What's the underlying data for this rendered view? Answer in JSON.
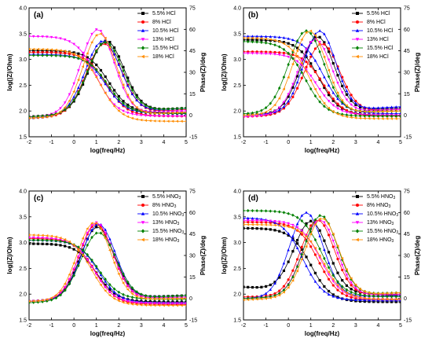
{
  "chart_data": [
    {
      "type": "scatter",
      "panel_label": "(a)",
      "xlabel": "log(freq/Hz)",
      "ylabel": "log(|Z|/Ohm)",
      "y2label": "Phase(Z)/deg",
      "xlim": [
        -2,
        5
      ],
      "ylim": [
        1.5,
        4.0
      ],
      "y2lim": [
        -15,
        75
      ],
      "xticks": [
        "-2",
        "-1",
        "0",
        "1",
        "2",
        "3",
        "4",
        "5"
      ],
      "yticks": [
        "1.5",
        "2.0",
        "2.5",
        "3.0",
        "3.5",
        "4.0"
      ],
      "y2ticks": [
        "-15",
        "0",
        "15",
        "30",
        "45",
        "60",
        "75"
      ],
      "legend": [
        "5.5% HCl",
        "8%  HCl",
        "10.5% HCl",
        "13% HCl",
        "15.5% HCl",
        "18% HCl"
      ],
      "legend_position": "top-right",
      "series": [
        {
          "name": "5.5% HCl",
          "color": "#000000",
          "marker": "square",
          "r0": 3.17,
          "rinf": 1.96,
          "fc": 1.55,
          "pk": 52,
          "fpk": 1.45,
          "w": 1.1,
          "ph0": -1,
          "phe": 5
        },
        {
          "name": "8%  HCl",
          "color": "#ff0000",
          "marker": "circle",
          "r0": 3.14,
          "rinf": 1.9,
          "fc": 1.45,
          "pk": 50,
          "fpk": 1.35,
          "w": 1.1,
          "ph0": -2,
          "phe": 4
        },
        {
          "name": "10.5% HCl",
          "color": "#0000ff",
          "marker": "triangle-up",
          "r0": 3.1,
          "rinf": 1.95,
          "fc": 1.4,
          "pk": 52,
          "fpk": 1.3,
          "w": 1.1,
          "ph0": -2,
          "phe": 5
        },
        {
          "name": "13% HCl",
          "color": "#ff00ff",
          "marker": "triangle-down",
          "r0": 3.45,
          "rinf": 1.9,
          "fc": 1.0,
          "pk": 60,
          "fpk": 1.05,
          "w": 1.05,
          "ph0": -1,
          "phe": 3
        },
        {
          "name": "15.5% HCl",
          "color": "#008000",
          "marker": "diamond",
          "r0": 3.08,
          "rinf": 1.95,
          "fc": 1.5,
          "pk": 51,
          "fpk": 1.4,
          "w": 1.1,
          "ph0": -1,
          "phe": 5
        },
        {
          "name": "18% HCl",
          "color": "#ff8c00",
          "marker": "triangle-left",
          "r0": 3.2,
          "rinf": 1.8,
          "fc": 1.2,
          "pk": 57,
          "fpk": 1.15,
          "w": 1.05,
          "ph0": -2,
          "phe": 2
        }
      ]
    },
    {
      "type": "scatter",
      "panel_label": "(b)",
      "xlabel": "log(freq/Hz)",
      "ylabel": "log(|Z|/Ohm)",
      "y2label": "Phase(Z)/deg",
      "xlim": [
        -2,
        5
      ],
      "ylim": [
        1.5,
        4.0
      ],
      "y2lim": [
        -15,
        75
      ],
      "xticks": [
        "-2",
        "-1",
        "0",
        "1",
        "2",
        "3",
        "4",
        "5"
      ],
      "yticks": [
        "1.5",
        "2.0",
        "2.5",
        "3.0",
        "3.5",
        "4.0"
      ],
      "y2ticks": [
        "-15",
        "0",
        "15",
        "30",
        "45",
        "60",
        "75"
      ],
      "legend": [
        "5.5% HCl",
        "8%  HCl",
        "10.5%  HCl",
        "13%  HCl",
        "15.5% HCl",
        "18%  HCl"
      ],
      "legend_position": "top-right",
      "series": [
        {
          "name": "5.5% HCl",
          "color": "#000000",
          "marker": "square",
          "r0": 3.38,
          "rinf": 1.92,
          "fc": 1.35,
          "pk": 55,
          "fpk": 1.3,
          "w": 1.05,
          "ph0": 0,
          "phe": 5
        },
        {
          "name": "8%  HCl",
          "color": "#ff0000",
          "marker": "circle",
          "r0": 3.15,
          "rinf": 1.9,
          "fc": 1.55,
          "pk": 50,
          "fpk": 1.5,
          "w": 1.1,
          "ph0": -1,
          "phe": 4
        },
        {
          "name": "10.5%  HCl",
          "color": "#0000ff",
          "marker": "triangle-up",
          "r0": 3.45,
          "rinf": 1.95,
          "fc": 1.55,
          "pk": 59,
          "fpk": 1.4,
          "w": 1.0,
          "ph0": 0,
          "phe": 6
        },
        {
          "name": "13%  HCl",
          "color": "#ff00ff",
          "marker": "triangle-down",
          "r0": 3.12,
          "rinf": 1.92,
          "fc": 1.25,
          "pk": 53,
          "fpk": 1.2,
          "w": 1.05,
          "ph0": -1,
          "phe": 4
        },
        {
          "name": "15.5% HCl",
          "color": "#008000",
          "marker": "diamond",
          "r0": 3.35,
          "rinf": 1.9,
          "fc": 0.75,
          "pk": 59,
          "fpk": 0.8,
          "w": 1.1,
          "ph0": 1,
          "phe": 3
        },
        {
          "name": "18%  HCl",
          "color": "#ff8c00",
          "marker": "triangle-left",
          "r0": 3.42,
          "rinf": 1.85,
          "fc": 0.95,
          "pk": 59,
          "fpk": 0.95,
          "w": 1.05,
          "ph0": 0,
          "phe": 3
        }
      ]
    },
    {
      "type": "scatter",
      "panel_label": "(c)",
      "xlabel": "log(freq/Hz)",
      "ylabel": "log(|Z|/Ohm)",
      "y2label": "Phase(Z)/deg",
      "xlim": [
        -2,
        5
      ],
      "ylim": [
        1.5,
        4.0
      ],
      "y2lim": [
        -15,
        75
      ],
      "xticks": [
        "-2",
        "-1",
        "0",
        "1",
        "2",
        "3",
        "4",
        "5"
      ],
      "yticks": [
        "1.5",
        "2.0",
        "2.5",
        "3.0",
        "3.5",
        "4.0"
      ],
      "y2ticks": [
        "-15",
        "0",
        "15",
        "30",
        "45",
        "60",
        "75"
      ],
      "legend": [
        "5.5% HNO3",
        "8% HNO3",
        "10.5% HNO3",
        "13% HNO3",
        "15.5% HNO3",
        "18% HNO3"
      ],
      "legend_position": "top-right",
      "series": [
        {
          "name": "5.5% HNO3",
          "color": "#000000",
          "marker": "square",
          "r0": 2.98,
          "rinf": 1.85,
          "fc": 1.0,
          "pk": 50,
          "fpk": 1.05,
          "w": 1.05,
          "ph0": -2,
          "phe": 2
        },
        {
          "name": "8% HNO3",
          "color": "#ff0000",
          "marker": "circle",
          "r0": 3.08,
          "rinf": 1.8,
          "fc": 0.95,
          "pk": 52,
          "fpk": 1.0,
          "w": 1.05,
          "ph0": -2,
          "phe": 1
        },
        {
          "name": "10.5% HNO3",
          "color": "#0000ff",
          "marker": "triangle-up",
          "r0": 3.05,
          "rinf": 1.83,
          "fc": 1.1,
          "pk": 52,
          "fpk": 1.1,
          "w": 1.05,
          "ph0": -2,
          "phe": 2
        },
        {
          "name": "13% HNO3",
          "color": "#ff00ff",
          "marker": "triangle-down",
          "r0": 3.1,
          "rinf": 1.82,
          "fc": 0.9,
          "pk": 53,
          "fpk": 1.0,
          "w": 1.05,
          "ph0": -2,
          "phe": 1
        },
        {
          "name": "15.5% HNO3",
          "color": "#008000",
          "marker": "diamond",
          "r0": 3.05,
          "rinf": 1.9,
          "fc": 1.1,
          "pk": 46,
          "fpk": 1.1,
          "w": 1.1,
          "ph0": -3,
          "phe": 2
        },
        {
          "name": "18% HNO3",
          "color": "#ff8c00",
          "marker": "triangle-left",
          "r0": 3.15,
          "rinf": 1.78,
          "fc": 0.8,
          "pk": 53,
          "fpk": 0.9,
          "w": 1.05,
          "ph0": -2,
          "phe": 0
        }
      ]
    },
    {
      "type": "scatter",
      "panel_label": "(d)",
      "xlabel": "log(freq/Hz)",
      "ylabel": "log(|Z|/Ohm)",
      "y2label": "Phase(Z)/deg",
      "xlim": [
        -2,
        5
      ],
      "ylim": [
        1.5,
        4.0
      ],
      "y2lim": [
        -15,
        75
      ],
      "xticks": [
        "-2",
        "-1",
        "0",
        "1",
        "2",
        "3",
        "4",
        "5"
      ],
      "yticks": [
        "1.5",
        "2.0",
        "2.5",
        "3.0",
        "3.5",
        "4.0"
      ],
      "y2ticks": [
        "-15",
        "0",
        "15",
        "30",
        "45",
        "60",
        "75"
      ],
      "legend": [
        "5.5% HNO3",
        "8% HNO3",
        "10.5% HNO3",
        "13% HNO3",
        "15.5% HNO3",
        "18% HNO3"
      ],
      "legend_position": "top-right",
      "series": [
        {
          "name": "5.5% HNO3",
          "color": "#000000",
          "marker": "square",
          "r0": 3.28,
          "rinf": 1.85,
          "fc": 1.0,
          "pk": 54,
          "fpk": 1.0,
          "w": 1.05,
          "ph0": 8,
          "phe": 2
        },
        {
          "name": "8% HNO3",
          "color": "#ff0000",
          "marker": "circle",
          "r0": 3.4,
          "rinf": 1.88,
          "fc": 1.35,
          "pk": 55,
          "fpk": 1.3,
          "w": 1.05,
          "ph0": 1,
          "phe": 3
        },
        {
          "name": "10.5% HNO3",
          "color": "#0000ff",
          "marker": "triangle-up",
          "r0": 3.48,
          "rinf": 1.88,
          "fc": 0.65,
          "pk": 60,
          "fpk": 0.8,
          "w": 1.05,
          "ph0": 0,
          "phe": 2
        },
        {
          "name": "13% HNO3",
          "color": "#ff00ff",
          "marker": "triangle-down",
          "r0": 3.43,
          "rinf": 1.9,
          "fc": 1.45,
          "pk": 55,
          "fpk": 1.4,
          "w": 1.05,
          "ph0": 0,
          "phe": 3
        },
        {
          "name": "15.5% HNO3",
          "color": "#008000",
          "marker": "diamond",
          "r0": 3.62,
          "rinf": 1.95,
          "fc": 1.5,
          "pk": 58,
          "fpk": 1.45,
          "w": 1.05,
          "ph0": 0,
          "phe": 4
        },
        {
          "name": "18% HNO3",
          "color": "#ff8c00",
          "marker": "triangle-left",
          "r0": 3.35,
          "rinf": 1.9,
          "fc": 1.55,
          "pk": 56,
          "fpk": 1.5,
          "w": 1.05,
          "ph0": -1,
          "phe": 4
        }
      ]
    }
  ]
}
